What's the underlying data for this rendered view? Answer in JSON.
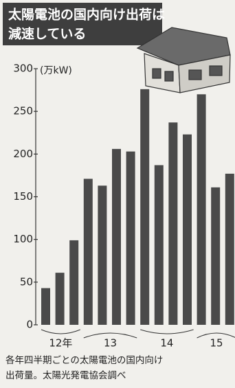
{
  "chart_data": {
    "type": "bar",
    "title_lines": [
      "太陽電池の国内向け出荷は",
      "減速している"
    ],
    "unit": "(万kW)",
    "values": [
      43,
      61,
      99,
      171,
      163,
      206,
      203,
      276,
      187,
      237,
      223,
      270,
      161,
      177
    ],
    "groups": [
      {
        "label": "12年",
        "quarters": 3
      },
      {
        "label": "13",
        "quarters": 4
      },
      {
        "label": "14",
        "quarters": 4
      },
      {
        "label": "15",
        "quarters": 3
      }
    ],
    "color": "#4a4a4a",
    "ylim": [
      0,
      300
    ],
    "yticks": [
      0,
      50,
      100,
      150,
      200,
      250,
      300
    ],
    "note_lines": [
      "各年四半期ごとの太陽電池の国内向け",
      "出荷量。太陽光発電協会調べ"
    ]
  }
}
